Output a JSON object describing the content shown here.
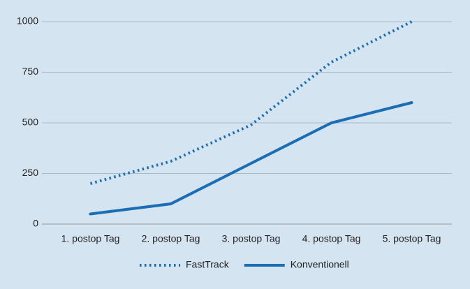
{
  "chart_data": {
    "type": "line",
    "categories": [
      "1. postop Tag",
      "2. postop Tag",
      "3. postop Tag",
      "4. postop Tag",
      "5. postop Tag"
    ],
    "series": [
      {
        "name": "FastTrack",
        "color": "#1b6db4",
        "dash": "dotted",
        "values": [
          200,
          310,
          490,
          800,
          1000
        ]
      },
      {
        "name": "Konventionell",
        "color": "#1b6db4",
        "dash": "solid",
        "values": [
          50,
          100,
          300,
          500,
          600
        ]
      }
    ],
    "ylim": [
      0,
      1000
    ],
    "yticks": [
      0,
      250,
      500,
      750,
      1000
    ],
    "grid": true,
    "legend": "bottom"
  }
}
